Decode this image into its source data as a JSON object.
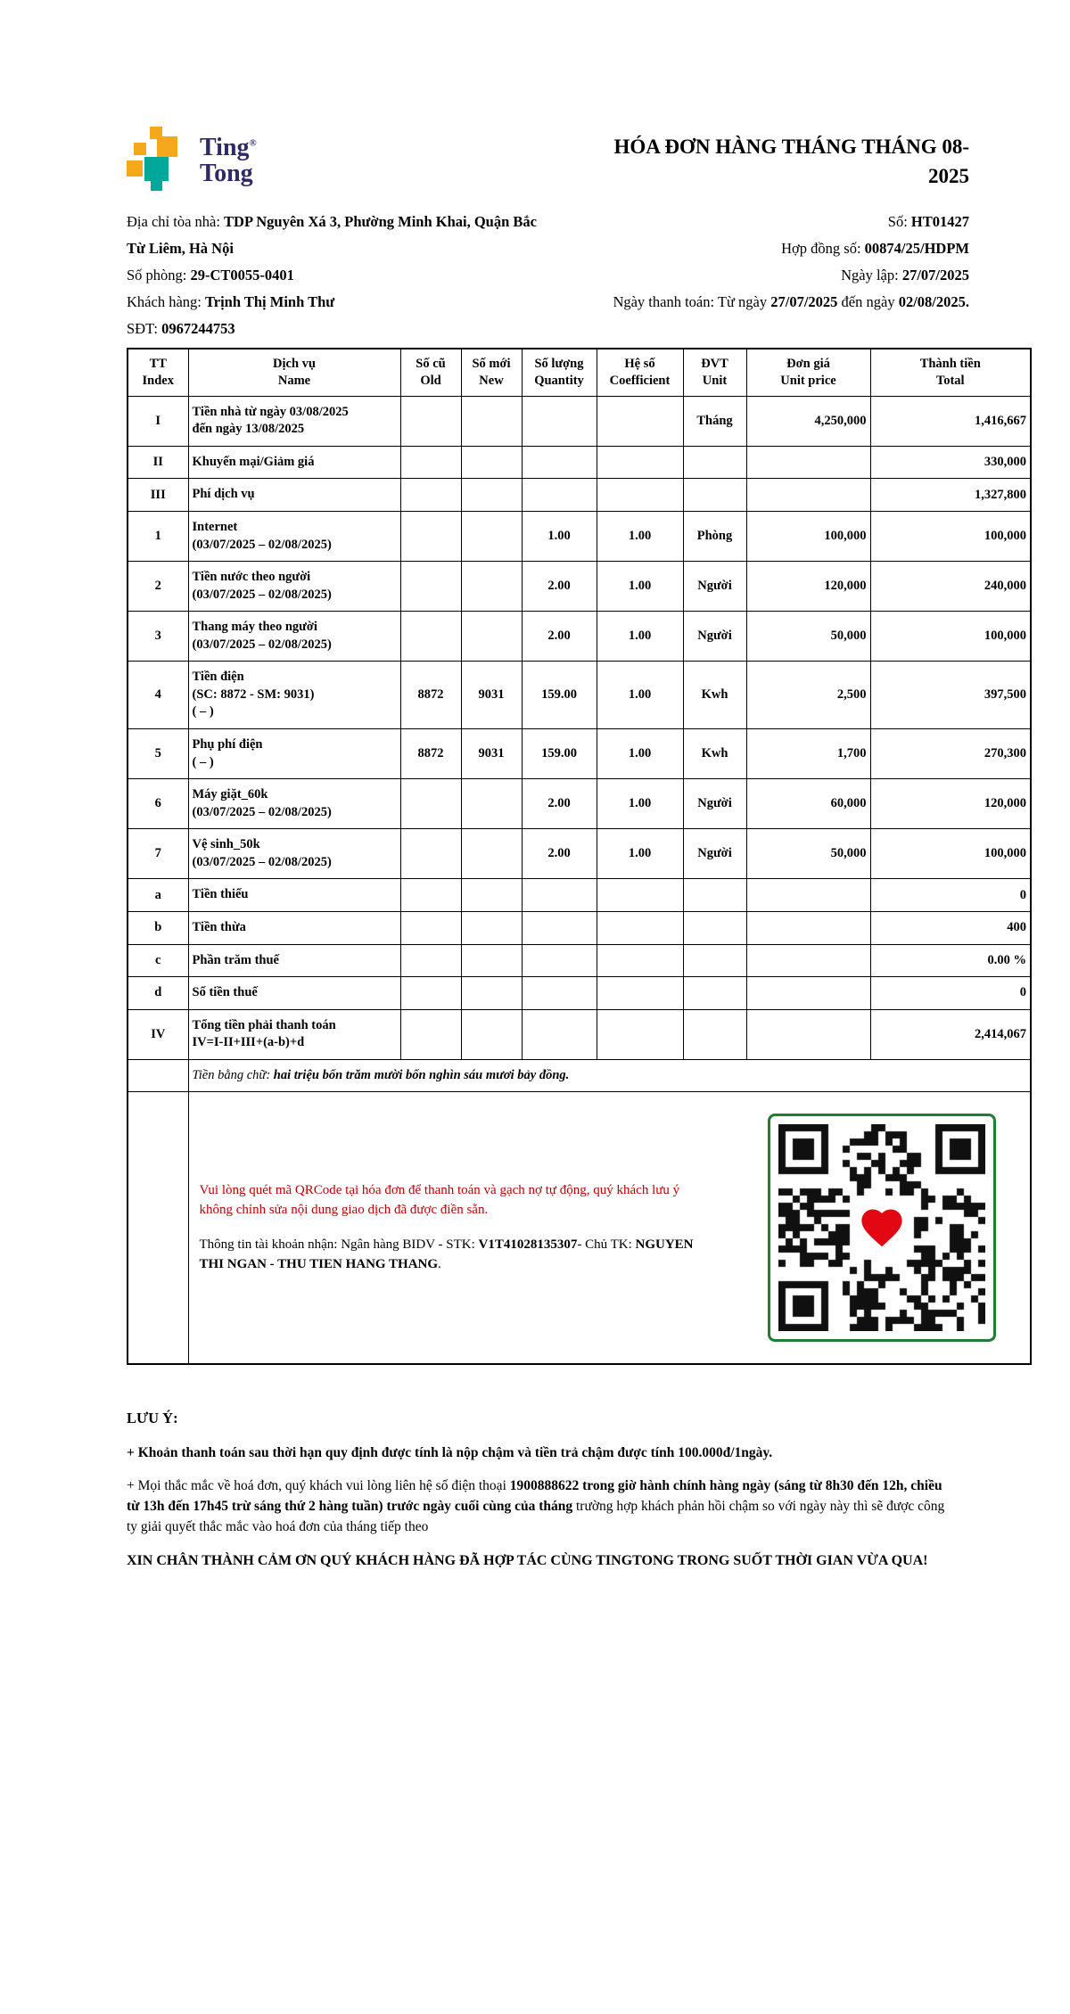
{
  "brand": {
    "name_line1": "Ting",
    "name_line2": "Tong",
    "registered": "®"
  },
  "title": "HÓA ĐƠN HÀNG THÁNG THÁNG 08-2025",
  "meta_left": {
    "lines": [
      [
        {
          "t": "Địa chỉ tòa nhà: ",
          "b": false
        },
        {
          "t": "TDP Nguyên Xá 3, Phường Minh Khai, Quận Bắc Từ Liêm, Hà Nội",
          "b": true
        }
      ],
      [
        {
          "t": "Số phòng: ",
          "b": false
        },
        {
          "t": "29-CT0055-0401",
          "b": true
        }
      ],
      [
        {
          "t": "Khách hàng: ",
          "b": false
        },
        {
          "t": "Trịnh Thị Minh Thư",
          "b": true
        }
      ],
      [
        {
          "t": "SĐT: ",
          "b": false
        },
        {
          "t": "0967244753",
          "b": true
        }
      ]
    ]
  },
  "meta_right": {
    "lines": [
      [
        {
          "t": "Số: ",
          "b": false
        },
        {
          "t": "HT01427",
          "b": true
        }
      ],
      [
        {
          "t": "Hợp đồng số: ",
          "b": false
        },
        {
          "t": "00874/25/HDPM",
          "b": true
        }
      ],
      [
        {
          "t": "Ngày lập: ",
          "b": false
        },
        {
          "t": "27/07/2025",
          "b": true
        }
      ],
      [
        {
          "t": "Ngày thanh toán: Từ ngày ",
          "b": false
        },
        {
          "t": "27/07/2025",
          "b": true
        },
        {
          "t": " đến ngày ",
          "b": false
        },
        {
          "t": "02/08/2025.",
          "b": true
        }
      ]
    ]
  },
  "table": {
    "headers": [
      [
        "TT",
        "Index"
      ],
      [
        "Dịch vụ",
        "Name"
      ],
      [
        "Số cũ",
        "Old"
      ],
      [
        "Số mới",
        "New"
      ],
      [
        "Số lượng",
        "Quantity"
      ],
      [
        "Hệ số",
        "Coefficient"
      ],
      [
        "ĐVT",
        "Unit"
      ],
      [
        "Đơn giá",
        "Unit price"
      ],
      [
        "Thành tiền",
        "Total"
      ]
    ],
    "rows": [
      {
        "idx": "I",
        "name": [
          "Tiền nhà từ ngày 03/08/2025",
          "đến ngày 13/08/2025"
        ],
        "old": "",
        "new": "",
        "qty": "",
        "coef": "",
        "unit": "Tháng",
        "price": "4,250,000",
        "total": "1,416,667"
      },
      {
        "idx": "II",
        "name": [
          "Khuyến mại/Giảm giá"
        ],
        "old": "",
        "new": "",
        "qty": "",
        "coef": "",
        "unit": "",
        "price": "",
        "total": "330,000"
      },
      {
        "idx": "III",
        "name": [
          "Phí dịch vụ"
        ],
        "old": "",
        "new": "",
        "qty": "",
        "coef": "",
        "unit": "",
        "price": "",
        "total": "1,327,800"
      },
      {
        "idx": "1",
        "name": [
          "Internet",
          "(03/07/2025 – 02/08/2025)"
        ],
        "old": "",
        "new": "",
        "qty": "1.00",
        "coef": "1.00",
        "unit": "Phòng",
        "price": "100,000",
        "total": "100,000"
      },
      {
        "idx": "2",
        "name": [
          "Tiền nước theo người",
          "(03/07/2025 – 02/08/2025)"
        ],
        "old": "",
        "new": "",
        "qty": "2.00",
        "coef": "1.00",
        "unit": "Người",
        "price": "120,000",
        "total": "240,000"
      },
      {
        "idx": "3",
        "name": [
          "Thang máy theo người",
          "(03/07/2025 – 02/08/2025)"
        ],
        "old": "",
        "new": "",
        "qty": "2.00",
        "coef": "1.00",
        "unit": "Người",
        "price": "50,000",
        "total": "100,000"
      },
      {
        "idx": "4",
        "name": [
          "Tiền điện",
          "(SC: 8872 - SM: 9031)",
          "( – )"
        ],
        "old": "8872",
        "new": "9031",
        "qty": "159.00",
        "coef": "1.00",
        "unit": "Kwh",
        "price": "2,500",
        "total": "397,500"
      },
      {
        "idx": "5",
        "name": [
          "Phụ phí điện",
          "( – )"
        ],
        "old": "8872",
        "new": "9031",
        "qty": "159.00",
        "coef": "1.00",
        "unit": "Kwh",
        "price": "1,700",
        "total": "270,300"
      },
      {
        "idx": "6",
        "name": [
          "Máy giặt_60k",
          "(03/07/2025 – 02/08/2025)"
        ],
        "old": "",
        "new": "",
        "qty": "2.00",
        "coef": "1.00",
        "unit": "Người",
        "price": "60,000",
        "total": "120,000"
      },
      {
        "idx": "7",
        "name": [
          "Vệ sinh_50k",
          "(03/07/2025 – 02/08/2025)"
        ],
        "old": "",
        "new": "",
        "qty": "2.00",
        "coef": "1.00",
        "unit": "Người",
        "price": "50,000",
        "total": "100,000"
      },
      {
        "idx": "a",
        "name": [
          "Tiền thiếu"
        ],
        "old": "",
        "new": "",
        "qty": "",
        "coef": "",
        "unit": "",
        "price": "",
        "total": "0"
      },
      {
        "idx": "b",
        "name": [
          "Tiền thừa"
        ],
        "old": "",
        "new": "",
        "qty": "",
        "coef": "",
        "unit": "",
        "price": "",
        "total": "400"
      },
      {
        "idx": "c",
        "name": [
          "Phần trăm thuế"
        ],
        "old": "",
        "new": "",
        "qty": "",
        "coef": "",
        "unit": "",
        "price": "",
        "total": "0.00 %"
      },
      {
        "idx": "d",
        "name": [
          "Số tiền thuế"
        ],
        "old": "",
        "new": "",
        "qty": "",
        "coef": "",
        "unit": "",
        "price": "",
        "total": "0"
      },
      {
        "idx": "IV",
        "name": [
          "Tổng tiền phải thanh toán",
          "IV=I-II+III+(a-b)+d"
        ],
        "old": "",
        "new": "",
        "qty": "",
        "coef": "",
        "unit": "",
        "price": "",
        "total": "2,414,067"
      }
    ],
    "amount_in_words_label": "Tiền bằng chữ:",
    "amount_in_words": "hai triệu bốn trăm mười bốn nghìn sáu mươi bảy đồng."
  },
  "qr_section": {
    "note_red": "Vui lòng quét mã QRCode tại hóa đơn để thanh toán và gạch nợ tự động, quý khách lưu ý không chỉnh sửa nội dung giao dịch đã được điền sẵn.",
    "account_segments": [
      {
        "t": "Thông tin tài khoản nhận: Ngân hàng BIDV - STK: ",
        "b": false
      },
      {
        "t": "V1T41028135307",
        "b": true
      },
      {
        "t": "- Chủ TK: ",
        "b": false
      },
      {
        "t": "NGUYEN THI NGAN - THU TIEN HANG THANG",
        "b": true
      },
      {
        "t": ".",
        "b": false
      }
    ]
  },
  "notes": {
    "heading": "LƯU Ý:",
    "p1_segments": [
      {
        "t": "+ Khoản thanh toán sau thời hạn quy định được tính là nộp chậm và tiền trả chậm được tính 100.000đ/1ngày.",
        "b": true
      }
    ],
    "p2_segments": [
      {
        "t": "+ Mọi thắc mắc về hoá đơn, quý khách vui lòng liên hệ số điện thoại ",
        "b": false
      },
      {
        "t": "1900888622 trong giờ hành chính hàng ngày (sáng từ 8h30 đến 12h, chiều từ 13h đến 17h45 trừ sáng thứ 2 hàng tuần)",
        "b": true
      },
      {
        "t": " trước ngày cuối cùng của tháng",
        "b": true
      },
      {
        "t": " trường hợp khách phản hồi chậm so với ngày này thì sẽ được công ty giải quyết thắc mắc vào hoá đơn của tháng tiếp theo",
        "b": false
      }
    ],
    "p3_segments": [
      {
        "t": "XIN CHÂN THÀNH CẢM ƠN QUÝ KHÁCH HÀNG ĐÃ HỢP TÁC CÙNG TINGTONG TRONG SUỐT THỜI GIAN VỪA QUA!",
        "b": true
      }
    ]
  },
  "colors": {
    "brand_navy": "#2e2a68",
    "brand_yellow": "#f5a81c",
    "brand_teal": "#00a79b",
    "note_red": "#c00000",
    "qr_green": "#1e7e34",
    "heart_red": "#e30613"
  }
}
